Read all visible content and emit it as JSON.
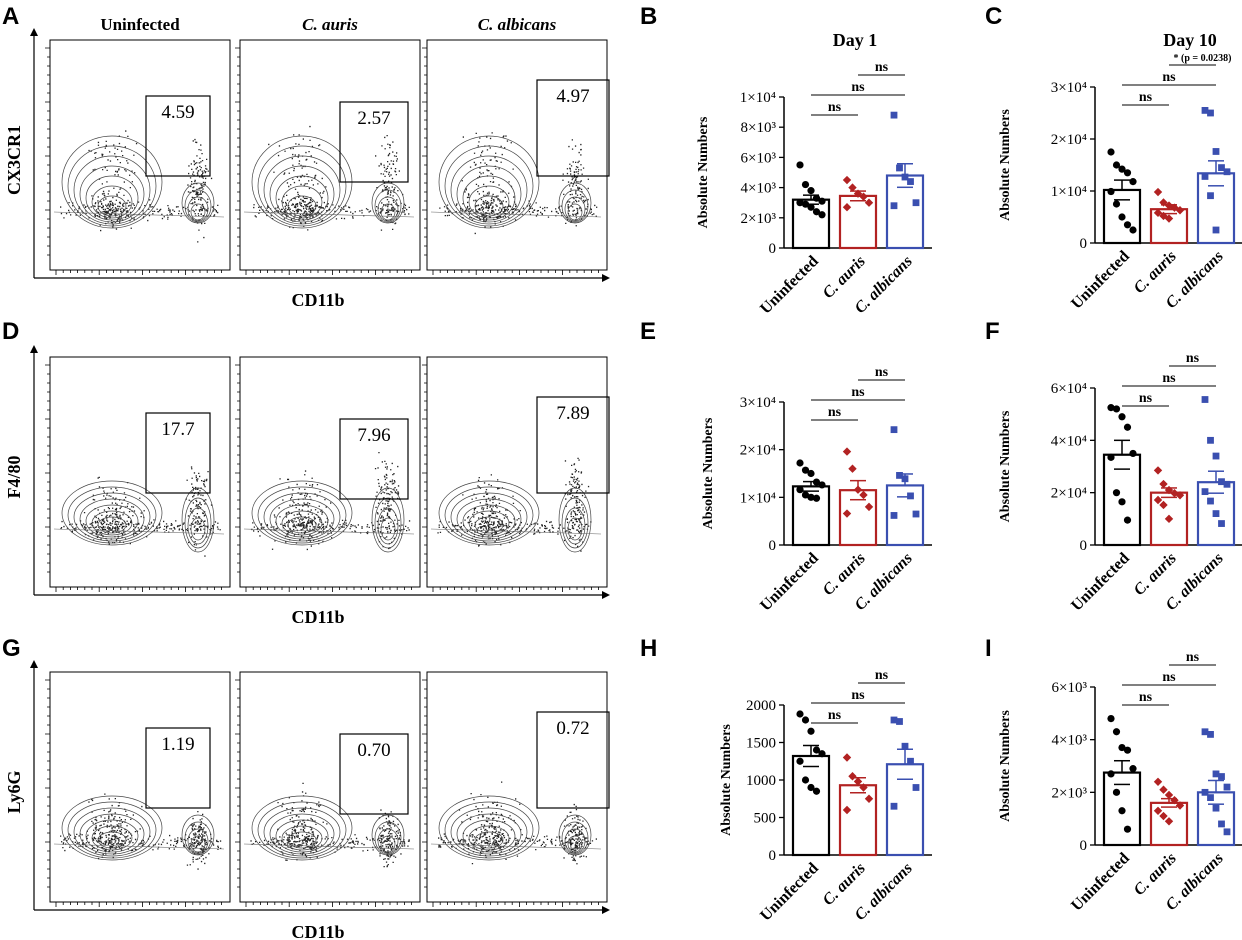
{
  "panel_labels": {
    "A": "A",
    "B": "B",
    "C": "C",
    "D": "D",
    "E": "E",
    "F": "F",
    "G": "G",
    "H": "H",
    "I": "I"
  },
  "day_titles": {
    "day1": "Day 1",
    "day10": "Day 10"
  },
  "flow": {
    "columns": [
      "Uninfected",
      "C. auris",
      "C. albicans"
    ],
    "x_label": "CD11b",
    "rows": [
      {
        "y_label": "CX3CR1",
        "gates": [
          "4.59",
          "2.57",
          "4.97"
        ]
      },
      {
        "y_label": "F4/80",
        "gates": [
          "17.7",
          "7.96",
          "7.89"
        ]
      },
      {
        "y_label": "Ly6G",
        "gates": [
          "1.19",
          "0.70",
          "0.72"
        ]
      }
    ]
  },
  "chart_data": [
    {
      "panel": "B",
      "type": "bar",
      "title": "Day 1",
      "ylabel": "Absolute Numbers",
      "categories": [
        "Uninfected",
        "C. auris",
        "C. albicans"
      ],
      "ylim": [
        0,
        10000
      ],
      "ticks": [
        0,
        2000,
        4000,
        6000,
        8000,
        10000
      ],
      "tick_labels": [
        "0",
        "2×10³",
        "4×10³",
        "6×10³",
        "8×10³",
        "1×10⁴"
      ],
      "values": [
        3200,
        3450,
        4800
      ],
      "sem": [
        300,
        320,
        780
      ],
      "points": [
        [
          5500,
          4200,
          3800,
          3300,
          3100,
          3000,
          2900,
          2700,
          2400,
          2200
        ],
        [
          4500,
          4000,
          3600,
          3400,
          3000,
          2700
        ],
        [
          8800,
          5300,
          4700,
          4400,
          3000,
          2800
        ]
      ],
      "comparisons": [
        {
          "from": 0,
          "to": 1,
          "label": "ns"
        },
        {
          "from": 0,
          "to": 2,
          "label": "ns"
        },
        {
          "from": 1,
          "to": 2,
          "label": "ns"
        }
      ]
    },
    {
      "panel": "C",
      "type": "bar",
      "title": "Day 10",
      "ylabel": "Absolute Numbers",
      "categories": [
        "Uninfected",
        "C. auris",
        "C. albicans"
      ],
      "ylim": [
        0,
        30000
      ],
      "ticks": [
        0,
        10000,
        20000,
        30000
      ],
      "tick_labels": [
        "0",
        "1×10⁴",
        "2×10⁴",
        "3×10⁴"
      ],
      "values": [
        10200,
        6500,
        13400
      ],
      "sem": [
        1900,
        850,
        2400
      ],
      "points": [
        [
          17500,
          15000,
          14200,
          13500,
          11800,
          9900,
          7500,
          5000,
          3500,
          2500
        ],
        [
          9800,
          7800,
          7200,
          6800,
          6300,
          5800,
          5200,
          4700
        ],
        [
          25500,
          25000,
          17600,
          14500,
          13700,
          12800,
          9100,
          2500
        ]
      ],
      "comparisons": [
        {
          "from": 0,
          "to": 1,
          "label": "ns"
        },
        {
          "from": 0,
          "to": 2,
          "label": "ns"
        },
        {
          "from": 1,
          "to": 2,
          "label": "* (p = 0.0238)"
        }
      ]
    },
    {
      "panel": "E",
      "type": "bar",
      "title": "",
      "ylabel": "Absolute Numbers",
      "categories": [
        "Uninfected",
        "C. auris",
        "C. albicans"
      ],
      "ylim": [
        0,
        30000
      ],
      "ticks": [
        0,
        10000,
        20000,
        30000
      ],
      "tick_labels": [
        "0",
        "1×10⁴",
        "2×10⁴",
        "3×10⁴"
      ],
      "values": [
        12300,
        11500,
        12500
      ],
      "sem": [
        1000,
        2000,
        2400
      ],
      "points": [
        [
          17200,
          15700,
          15000,
          13200,
          12600,
          11600,
          10500,
          10000,
          9800
        ],
        [
          19600,
          16000,
          11600,
          10500,
          8000,
          6600
        ],
        [
          24200,
          14600,
          13900,
          10300,
          6500,
          6200
        ]
      ],
      "comparisons": [
        {
          "from": 0,
          "to": 1,
          "label": "ns"
        },
        {
          "from": 0,
          "to": 2,
          "label": "ns"
        },
        {
          "from": 1,
          "to": 2,
          "label": "ns"
        }
      ]
    },
    {
      "panel": "F",
      "type": "bar",
      "title": "",
      "ylabel": "Absolute Numbers",
      "categories": [
        "Uninfected",
        "C. auris",
        "C. albicans"
      ],
      "ylim": [
        0,
        60000
      ],
      "ticks": [
        0,
        20000,
        40000,
        60000
      ],
      "tick_labels": [
        "0",
        "2×10⁴",
        "4×10⁴",
        "6×10⁴"
      ],
      "values": [
        34500,
        20000,
        24000
      ],
      "sem": [
        5500,
        1800,
        4200
      ],
      "points": [
        [
          52500,
          52000,
          49000,
          45000,
          35000,
          33500,
          20000,
          16500,
          9500
        ],
        [
          28500,
          23300,
          21000,
          19800,
          19000,
          17200,
          15300,
          10000
        ],
        [
          55600,
          40000,
          34000,
          24200,
          23200,
          20400,
          16800,
          12000,
          8200
        ]
      ],
      "comparisons": [
        {
          "from": 0,
          "to": 1,
          "label": "ns"
        },
        {
          "from": 0,
          "to": 2,
          "label": "ns"
        },
        {
          "from": 1,
          "to": 2,
          "label": "ns"
        }
      ]
    },
    {
      "panel": "H",
      "type": "bar",
      "title": "",
      "ylabel": "Absolute Numbers",
      "categories": [
        "Uninfected",
        "C. auris",
        "C. albicans"
      ],
      "ylim": [
        0,
        2000
      ],
      "ticks": [
        0,
        500,
        1000,
        1500,
        2000
      ],
      "tick_labels": [
        "0",
        "500",
        "1000",
        "1500",
        "2000"
      ],
      "values": [
        1320,
        930,
        1210
      ],
      "sem": [
        140,
        100,
        200
      ],
      "points": [
        [
          1880,
          1800,
          1650,
          1400,
          1350,
          1250,
          1000,
          900,
          850
        ],
        [
          1300,
          1050,
          980,
          900,
          750,
          600
        ],
        [
          1800,
          1780,
          1450,
          1250,
          900,
          650
        ]
      ],
      "comparisons": [
        {
          "from": 0,
          "to": 1,
          "label": "ns"
        },
        {
          "from": 0,
          "to": 2,
          "label": "ns"
        },
        {
          "from": 1,
          "to": 2,
          "label": "ns"
        }
      ]
    },
    {
      "panel": "I",
      "type": "bar",
      "title": "",
      "ylabel": "Absolute Numbers",
      "categories": [
        "Uninfected",
        "C. auris",
        "C. albicans"
      ],
      "ylim": [
        0,
        6000
      ],
      "ticks": [
        0,
        2000,
        4000,
        6000
      ],
      "tick_labels": [
        "0",
        "2×10³",
        "4×10³",
        "6×10³"
      ],
      "values": [
        2750,
        1600,
        2000
      ],
      "sem": [
        450,
        160,
        450
      ],
      "points": [
        [
          4800,
          4300,
          3700,
          3600,
          2900,
          2700,
          2000,
          1300,
          600
        ],
        [
          2400,
          2100,
          1900,
          1700,
          1500,
          1300,
          1100,
          900
        ],
        [
          4300,
          4200,
          2700,
          2600,
          2200,
          2000,
          1800,
          1400,
          800,
          500
        ]
      ],
      "comparisons": [
        {
          "from": 0,
          "to": 1,
          "label": "ns"
        },
        {
          "from": 0,
          "to": 2,
          "label": "ns"
        },
        {
          "from": 1,
          "to": 2,
          "label": "ns"
        }
      ]
    }
  ],
  "colors": {
    "uninfected": "#000000",
    "auris": "#b22222",
    "albicans": "#3a4fb0"
  }
}
